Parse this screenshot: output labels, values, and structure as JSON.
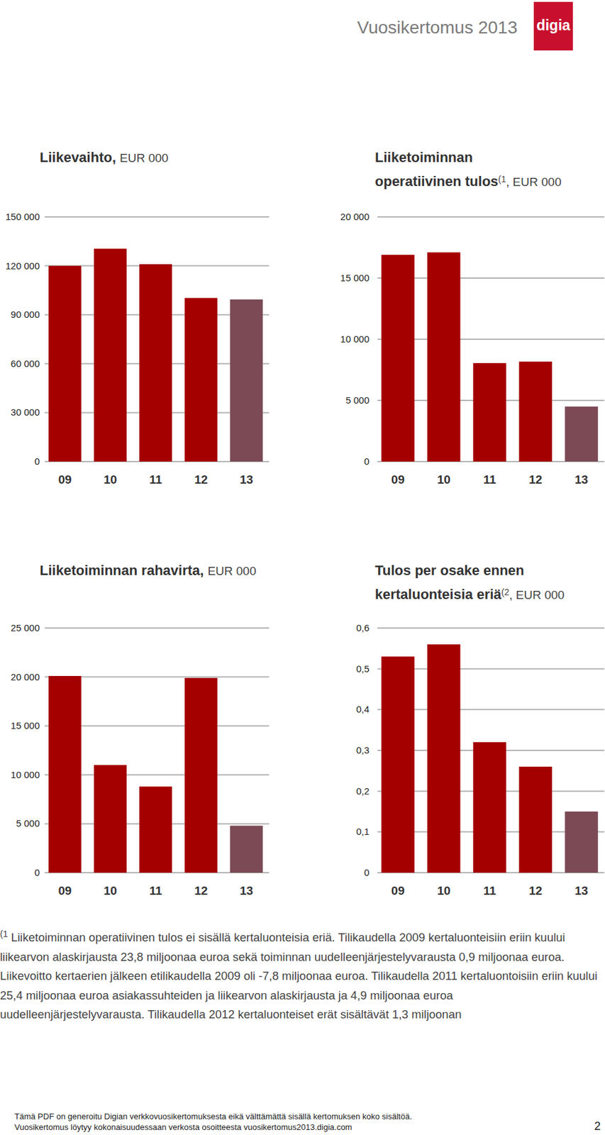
{
  "header": {
    "title": "Vuosikertomus 2013",
    "logo": "digia"
  },
  "chart_data": [
    {
      "type": "bar",
      "title": [
        "Liikevaihto,"
      ],
      "subtitle": "EUR 000",
      "categories": [
        "09",
        "10",
        "11",
        "12",
        "13"
      ],
      "values": [
        120000,
        130500,
        121000,
        100300,
        99400
      ],
      "colors": [
        "#a50000",
        "#a50000",
        "#a50000",
        "#a50000",
        "#7b4a55"
      ],
      "ylim": [
        0,
        150000
      ],
      "yticks": [
        0,
        {
          "value": 30000,
          "label": "30 000"
        },
        {
          "value": 60000,
          "label": "60 000"
        },
        {
          "value": 90000,
          "label": "90 000"
        },
        {
          "value": 120000,
          "label": "120 000"
        },
        {
          "value": 150000,
          "label": "150 000"
        }
      ],
      "grid": true
    },
    {
      "type": "bar",
      "title": [
        "Liiketoiminnan",
        "operatiivinen tulos"
      ],
      "title_ref": "(1",
      "subtitle": ", EUR 000",
      "categories": [
        "09",
        "10",
        "11",
        "12",
        "13"
      ],
      "values": [
        16900,
        17100,
        8050,
        8170,
        4500
      ],
      "colors": [
        "#a50000",
        "#a50000",
        "#a50000",
        "#a50000",
        "#7b4a55"
      ],
      "ylim": [
        0,
        20000
      ],
      "yticks": [
        0,
        {
          "value": 5000,
          "label": "5 000"
        },
        {
          "value": 10000,
          "label": "10 000"
        },
        {
          "value": 15000,
          "label": "15 000"
        },
        {
          "value": 20000,
          "label": "20 000"
        }
      ],
      "grid": true
    },
    {
      "type": "bar",
      "title": [
        "Liiketoiminnan rahavirta,"
      ],
      "subtitle": "EUR 000",
      "categories": [
        "09",
        "10",
        "11",
        "12",
        "13"
      ],
      "values": [
        20100,
        11000,
        8800,
        19900,
        4800
      ],
      "colors": [
        "#a50000",
        "#a50000",
        "#a50000",
        "#a50000",
        "#7b4a55"
      ],
      "ylim": [
        0,
        25000
      ],
      "yticks": [
        0,
        {
          "value": 5000,
          "label": "5 000"
        },
        {
          "value": 10000,
          "label": "10 000"
        },
        {
          "value": 15000,
          "label": "15 000"
        },
        {
          "value": 20000,
          "label": "20 000"
        },
        {
          "value": 25000,
          "label": "25 000"
        }
      ],
      "grid": true
    },
    {
      "type": "bar",
      "title": [
        "Tulos per osake ennen",
        "kertaluonteisia eriä"
      ],
      "title_ref": "(2",
      "subtitle": ", EUR 000",
      "categories": [
        "09",
        "10",
        "11",
        "12",
        "13"
      ],
      "values": [
        0.53,
        0.56,
        0.32,
        0.26,
        0.15
      ],
      "colors": [
        "#a50000",
        "#a50000",
        "#a50000",
        "#a50000",
        "#7b4a55"
      ],
      "ylim": [
        0,
        0.6
      ],
      "yticks": [
        0,
        {
          "value": 0.1,
          "label": "0,1"
        },
        {
          "value": 0.2,
          "label": "0,2"
        },
        {
          "value": 0.3,
          "label": "0,3"
        },
        {
          "value": 0.4,
          "label": "0,4"
        },
        {
          "value": 0.5,
          "label": "0,5"
        },
        {
          "value": 0.6,
          "label": "0,6"
        }
      ],
      "grid": true
    }
  ],
  "footnote": {
    "ref": "(1",
    "text": "Liiketoiminnan operatiivinen tulos ei sisällä kertaluonteisia eriä. Tilikaudella 2009 kertaluonteisiin eriin kuului liikearvon alaskirjausta 23,8 miljoonaa euroa sekä toiminnan uudelleenjärjestelyvarausta 0,9 miljoonaa euroa. Liikevoitto kertaerien jälkeen etilikaudella 2009 oli -7,8 miljoonaa euroa. Tilikaudella 2011 kertaluontoisiin eriin kuului 25,4 miljoonaa euroa asiakassuhteiden ja liikearvon alaskirjausta ja 4,9 miljoonaa euroa uudelleenjärjestelyvarausta. Tilikaudella 2012 kertaluonteiset erät sisältävät 1,3 miljoonan"
  },
  "footer": {
    "lines": [
      "Tämä PDF on generoitu Digian verkkovuosikertomuksesta eikä välttämättä sisällä kertomuksen koko sisältöä.",
      "Vuosikertomus löytyy kokonaisuudessaan verkosta osoitteesta vuosikertomus2013.digia.com"
    ],
    "page": "2"
  }
}
